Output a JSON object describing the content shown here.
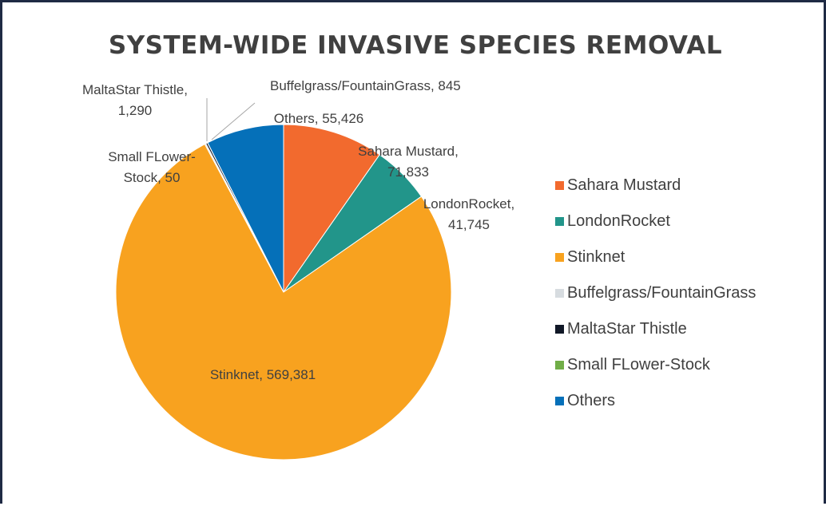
{
  "chart_data": {
    "type": "pie",
    "title": "SYSTEM-WIDE INVASIVE SPECIES REMOVAL",
    "legend_position": "right",
    "slices": [
      {
        "label": "Sahara Mustard",
        "value": 71833,
        "value_text": "71,833",
        "color": "#F26A2E"
      },
      {
        "label": "LondonRocket",
        "value": 41745,
        "value_text": "41,745",
        "color": "#22958A"
      },
      {
        "label": "Stinknet",
        "value": 569381,
        "value_text": "569,381",
        "color": "#F8A21F"
      },
      {
        "label": "Buffelgrass/FountainGrass",
        "value": 845,
        "value_text": "845",
        "color": "#D7DCE0"
      },
      {
        "label": "MaltaStar Thistle",
        "value": 1290,
        "value_text": "1,290",
        "color": "#111827"
      },
      {
        "label": "Small FLower-Stock",
        "value": 50,
        "value_text": "50",
        "color": "#70AD47"
      },
      {
        "label": "Others",
        "value": 55426,
        "value_text": "55,426",
        "color": "#0570B9"
      }
    ],
    "data_labels": {
      "sahara_line1": "Sahara Mustard,",
      "sahara_line2": "71,833",
      "london_line1": "LondonRocket,",
      "london_line2": "41,745",
      "stinknet": "Stinknet,  569,381",
      "buffel": "Buffelgrass/FountainGrass,  845",
      "malta_line1": "MaltaStar Thistle,",
      "malta_line2": "1,290",
      "small_line1": "Small FLower-",
      "small_line2": "Stock,  50",
      "others": "Others,  55,426"
    }
  }
}
